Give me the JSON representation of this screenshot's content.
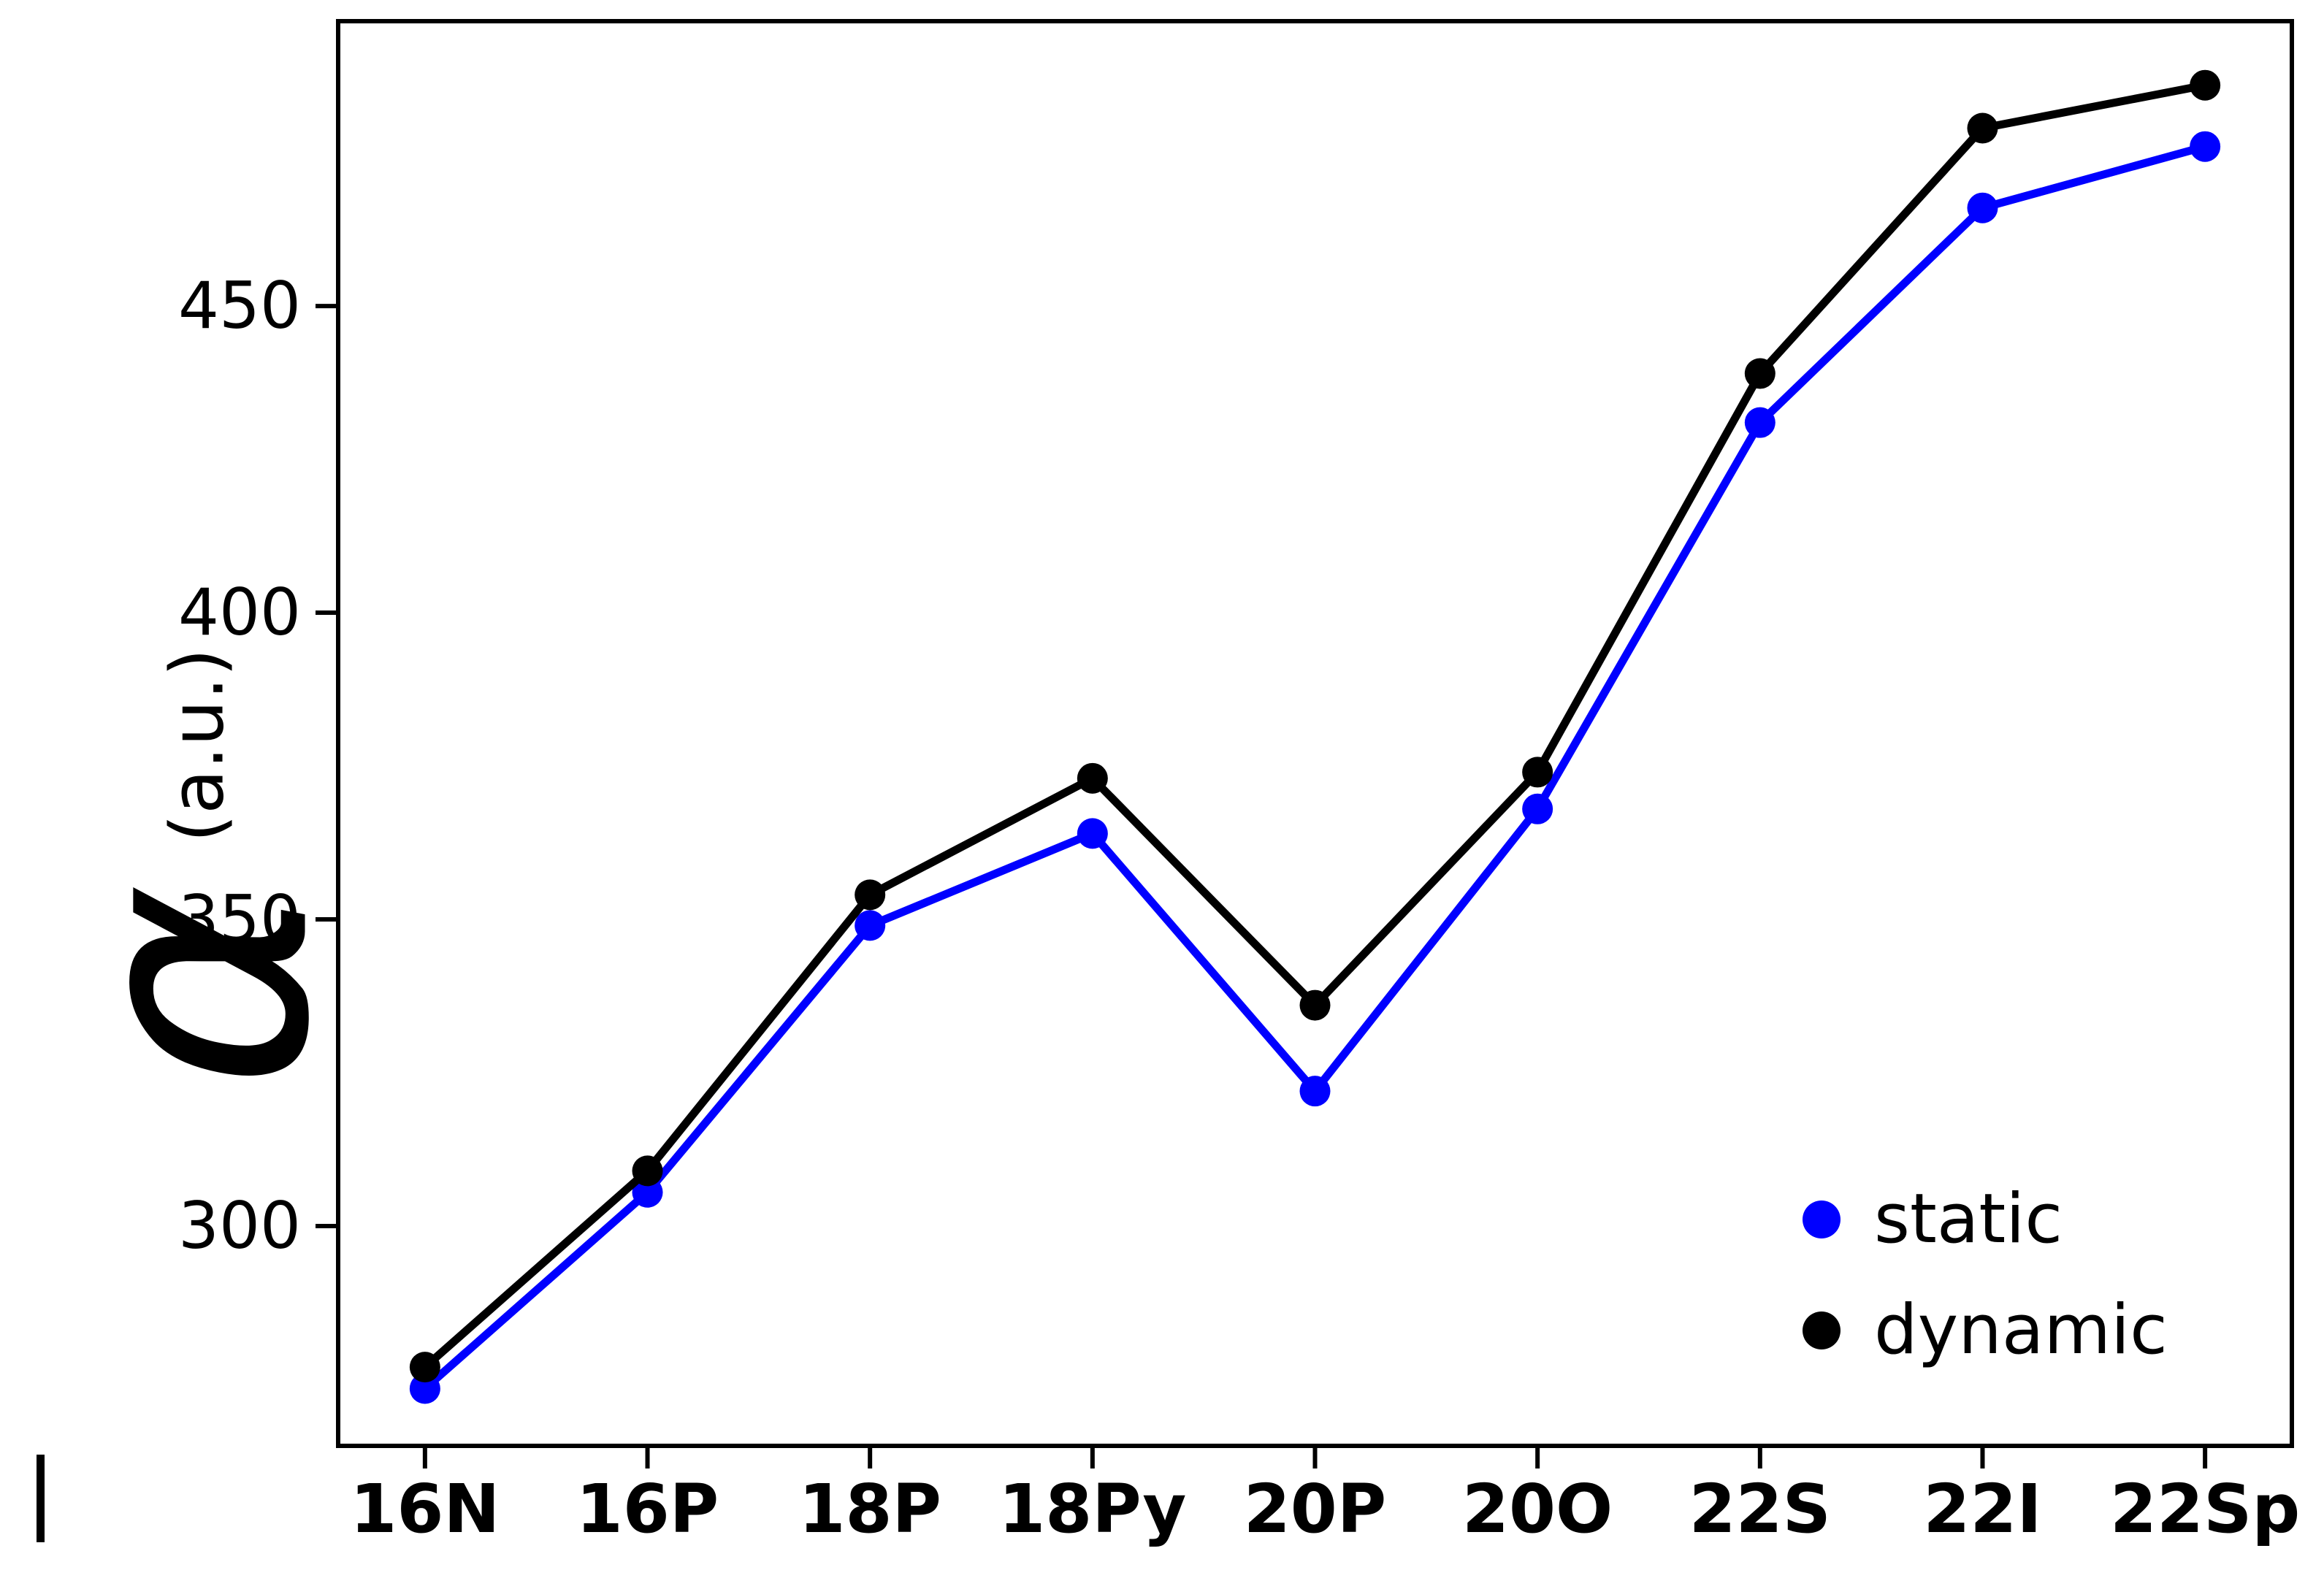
{
  "figure": {
    "background": "#ffffff",
    "axis_color": "#000000"
  },
  "chart_data": {
    "type": "line",
    "title": "",
    "xlabel": "",
    "ylabel": {
      "symbol": "α",
      "overbar": true,
      "unit": "(a.u.)"
    },
    "categories": [
      "16N",
      "16P",
      "18P",
      "18Py",
      "20P",
      "20O",
      "22S",
      "22I",
      "22Sp"
    ],
    "series": [
      {
        "name": "static",
        "color": "#0000ff",
        "marker": "circle",
        "values": [
          273.5,
          305.5,
          349,
          364,
          322,
          368,
          431,
          466,
          476
        ]
      },
      {
        "name": "dynamic",
        "color": "#000000",
        "marker": "circle",
        "values": [
          277,
          309,
          354,
          373,
          336,
          374,
          439,
          479,
          486
        ]
      }
    ],
    "yticks": [
      300,
      350,
      400,
      450
    ],
    "ylim": [
      263.8,
      496.8
    ],
    "x_margin": 0.4,
    "grid": false,
    "legend_position": "lower right"
  },
  "legend": {
    "items": [
      {
        "label": "static",
        "color": "#0000ff"
      },
      {
        "label": "dynamic",
        "color": "#000000"
      }
    ]
  }
}
